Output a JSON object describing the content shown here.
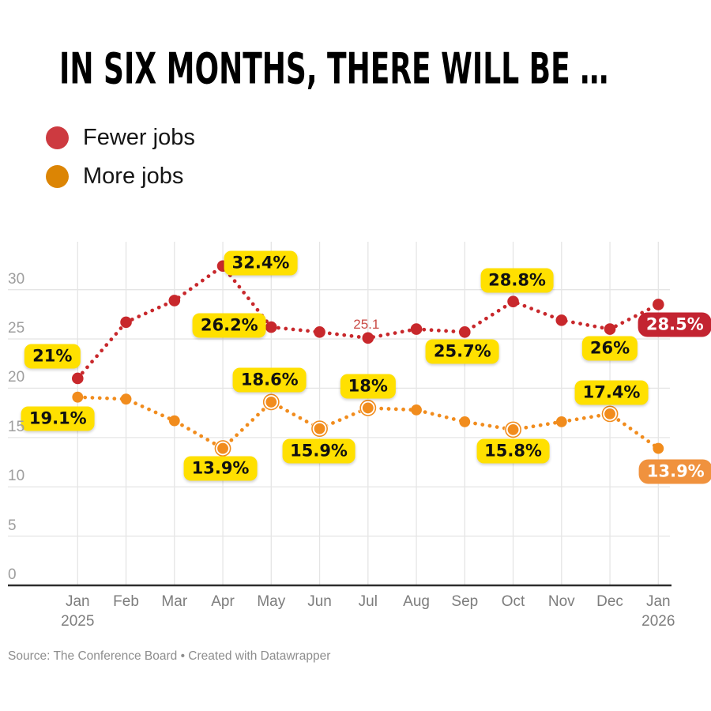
{
  "title": "IN SIX MONTHS, THERE WILL BE …",
  "legend": [
    {
      "label": "Fewer jobs",
      "color": "#cd3a40"
    },
    {
      "label": "More jobs",
      "color": "#dc8504"
    }
  ],
  "footer": "Source: The Conference Board • Created with Datawrapper",
  "colors": {
    "red_line": "#c8282c",
    "orange_line": "#f18c1d",
    "yellow_label_bg": "#ffe000",
    "red_label_bg": "#c32431",
    "orange_label_bg": "#f0923e",
    "grid": "#e5e5e5",
    "baseline": "#2d2d2d"
  },
  "chart_data": {
    "type": "line",
    "title": "IN SIX MONTHS, THERE WILL BE …",
    "x": [
      "Jan 2025",
      "Feb",
      "Mar",
      "Apr",
      "May",
      "Jun",
      "Jul",
      "Aug",
      "Sep",
      "Oct",
      "Nov",
      "Dec",
      "Jan 2026"
    ],
    "series": [
      {
        "name": "Fewer jobs",
        "color": "#c8282c",
        "style": "dotted",
        "values": [
          21,
          26.7,
          28.9,
          32.4,
          26.2,
          25.7,
          25.1,
          26.0,
          25.7,
          28.8,
          26.9,
          26,
          28.5
        ]
      },
      {
        "name": "More jobs",
        "color": "#f18c1d",
        "style": "dotted",
        "values": [
          19.1,
          18.9,
          16.7,
          13.9,
          18.6,
          15.9,
          18,
          17.8,
          16.6,
          15.8,
          16.6,
          17.4,
          13.9
        ]
      }
    ],
    "ylim": [
      0,
      35
    ],
    "yticks": [
      0,
      5,
      10,
      15,
      20,
      25,
      30
    ],
    "grid": "on",
    "legend_position": "top-left",
    "xlabel": "",
    "ylabel": "",
    "value_labels": [
      {
        "series": 0,
        "index": 0,
        "text": "21%",
        "style": "yellow"
      },
      {
        "series": 0,
        "index": 3,
        "text": "32.4%",
        "style": "yellow"
      },
      {
        "series": 0,
        "index": 4,
        "text": "26.2%",
        "style": "yellow"
      },
      {
        "series": 0,
        "index": 6,
        "text": "25.1",
        "style": "plain-red"
      },
      {
        "series": 0,
        "index": 8,
        "text": "25.7%",
        "style": "yellow"
      },
      {
        "series": 0,
        "index": 9,
        "text": "28.8%",
        "style": "yellow"
      },
      {
        "series": 0,
        "index": 11,
        "text": "26%",
        "style": "yellow"
      },
      {
        "series": 0,
        "index": 12,
        "text": "28.5%",
        "style": "red-badge"
      },
      {
        "series": 1,
        "index": 0,
        "text": "19.1%",
        "style": "yellow"
      },
      {
        "series": 1,
        "index": 3,
        "text": "13.9%",
        "style": "yellow"
      },
      {
        "series": 1,
        "index": 4,
        "text": "18.6%",
        "style": "yellow"
      },
      {
        "series": 1,
        "index": 5,
        "text": "15.9%",
        "style": "yellow"
      },
      {
        "series": 1,
        "index": 6,
        "text": "18%",
        "style": "yellow"
      },
      {
        "series": 1,
        "index": 9,
        "text": "15.8%",
        "style": "yellow"
      },
      {
        "series": 1,
        "index": 11,
        "text": "17.4%",
        "style": "yellow"
      },
      {
        "series": 1,
        "index": 12,
        "text": "13.9%",
        "style": "orange-badge"
      }
    ],
    "emphasized_points": {
      "series": 1,
      "indices": [
        3,
        4,
        5,
        6,
        9,
        11
      ]
    }
  }
}
